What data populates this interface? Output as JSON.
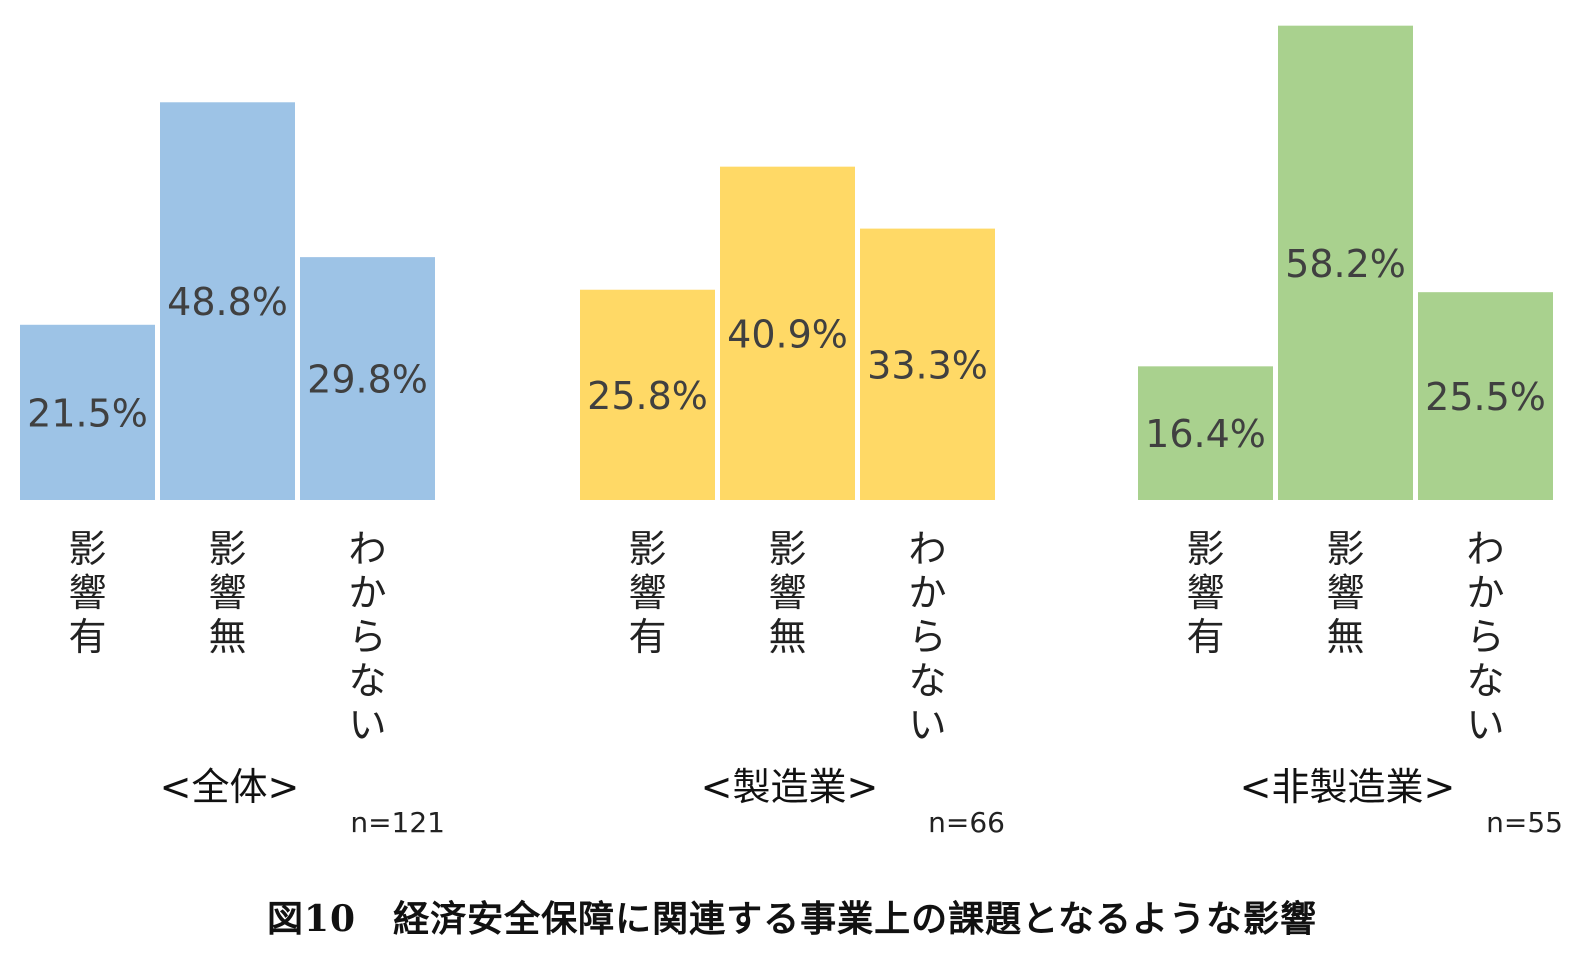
{
  "chart_data": [
    {
      "type": "bar",
      "title": "<全体>",
      "n_label": "n=121",
      "color": "#9DC3E6",
      "categories": [
        "影響有",
        "影響無",
        "わからない"
      ],
      "values": [
        21.5,
        48.8,
        29.8
      ],
      "value_labels": [
        "21.5%",
        "48.8%",
        "29.8%"
      ],
      "ylim": [
        0,
        60
      ],
      "unit": "%"
    },
    {
      "type": "bar",
      "title": "<製造業>",
      "n_label": "n=66",
      "color": "#FFD966",
      "categories": [
        "影響有",
        "影響無",
        "わからない"
      ],
      "values": [
        25.8,
        40.9,
        33.3
      ],
      "value_labels": [
        "25.8%",
        "40.9%",
        "33.3%"
      ],
      "ylim": [
        0,
        60
      ],
      "unit": "%"
    },
    {
      "type": "bar",
      "title": "<非製造業>",
      "n_label": "n=55",
      "color": "#A9D18E",
      "categories": [
        "影響有",
        "影響無",
        "わからない"
      ],
      "values": [
        16.4,
        58.2,
        25.5
      ],
      "value_labels": [
        "16.4%",
        "58.2%",
        "25.5%"
      ],
      "ylim": [
        0,
        60
      ],
      "unit": "%"
    }
  ],
  "caption": "図10　経済安全保障に関連する事業上の課題となるような影響",
  "colors": {
    "label_text": "#404040",
    "axis_text": "#222222"
  }
}
